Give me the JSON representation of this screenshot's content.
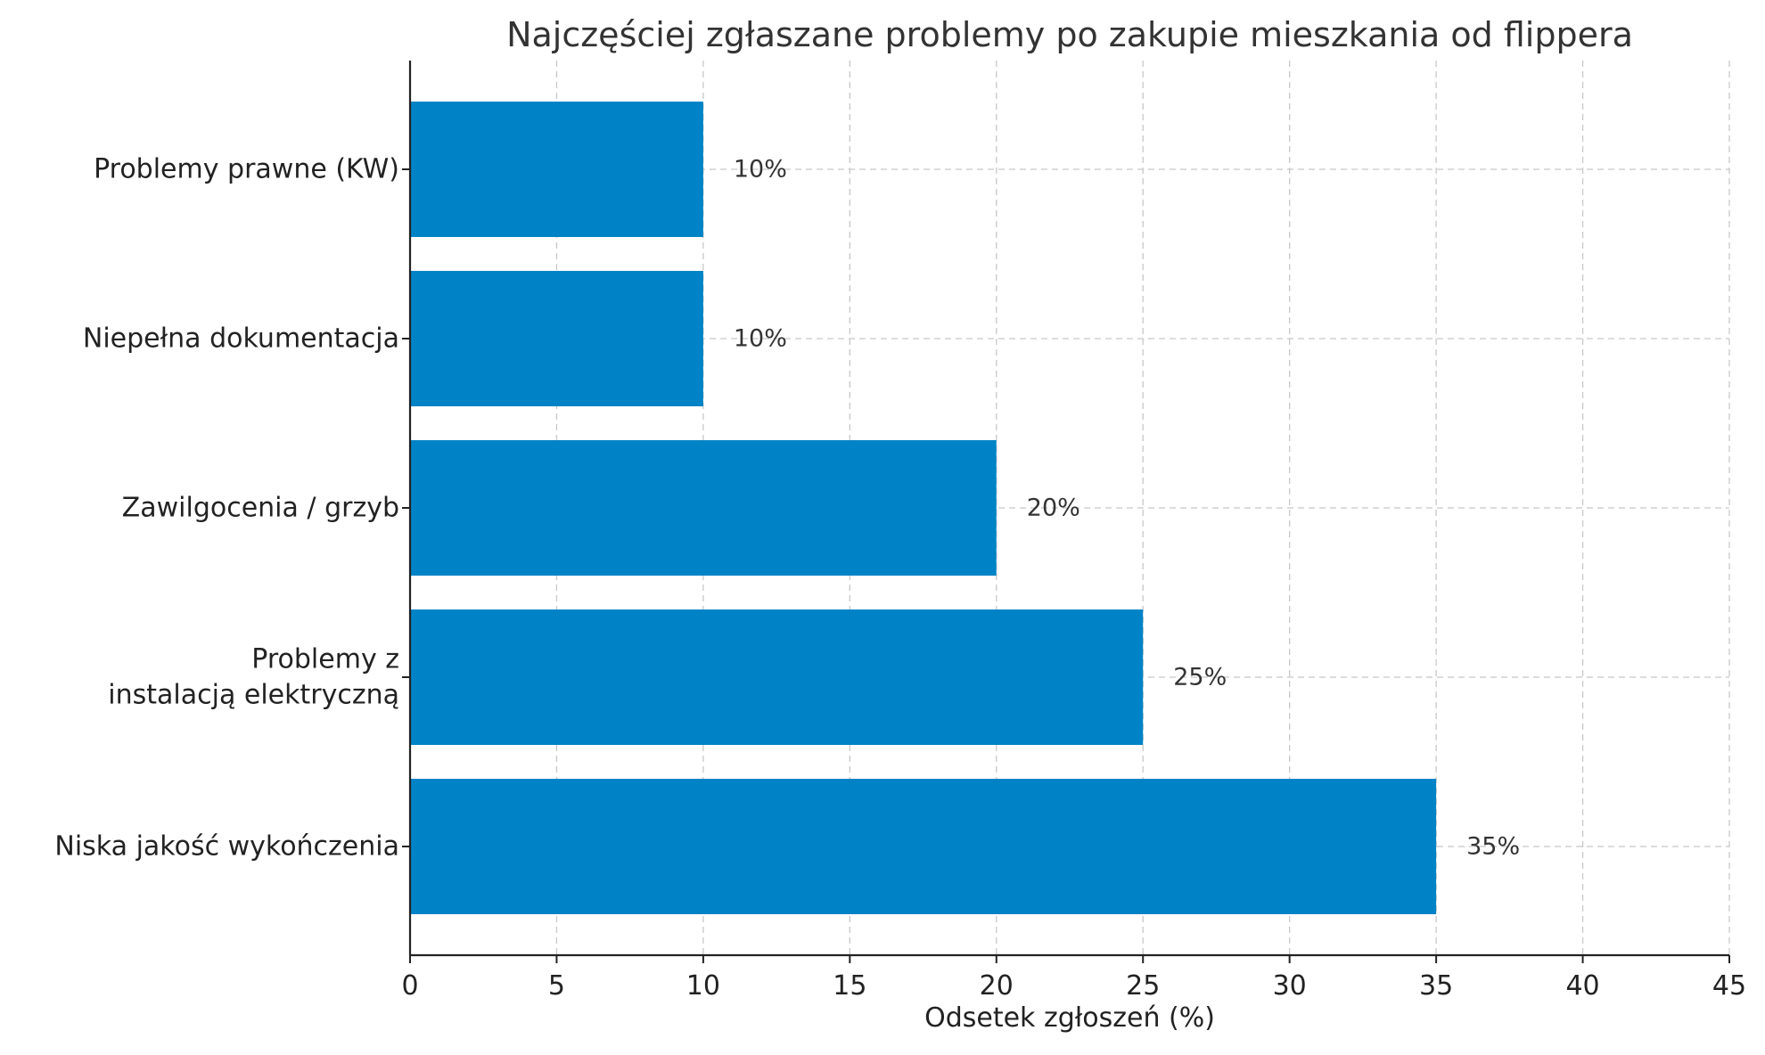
{
  "chart_data": {
    "type": "bar",
    "orientation": "horizontal",
    "title": "Najczęściej zgłaszane problemy po zakupie mieszkania od flippera",
    "xlabel": "Odsetek zgłoszeń (%)",
    "ylabel": "",
    "xlim": [
      0,
      45
    ],
    "xticks": [
      0,
      5,
      10,
      15,
      20,
      25,
      30,
      35,
      40,
      45
    ],
    "grid": true,
    "bar_color": "#0083C6",
    "categories": [
      [
        "Problemy prawne (KW)"
      ],
      [
        "Niepełna dokumentacja"
      ],
      [
        "Zawilgocenia / grzyb"
      ],
      [
        "Problemy z",
        "instalacją elektryczną"
      ],
      [
        "Niska jakość wykończenia"
      ]
    ],
    "values": [
      10,
      10,
      20,
      25,
      35
    ],
    "value_labels": [
      "10%",
      "10%",
      "20%",
      "25%",
      "35%"
    ]
  }
}
